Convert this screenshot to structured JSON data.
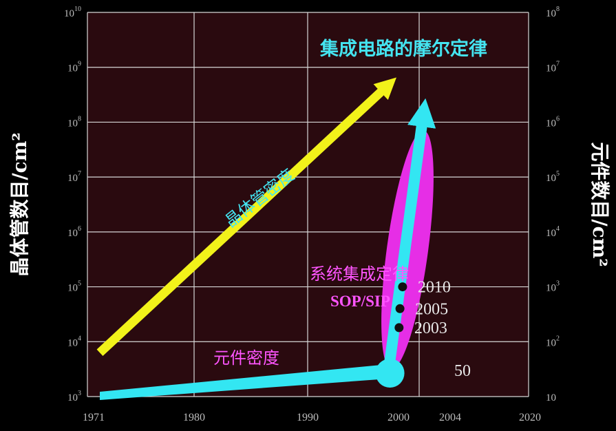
{
  "chart_data": {
    "type": "line",
    "title": "",
    "colors": {
      "background": "#000000",
      "plot_area": "#2a0a0f",
      "grid": "#d8d8d8",
      "transistor_arrow": "#f2f21a",
      "component_arrow": "#33e6f2",
      "ellipse": "#e62ee6",
      "moore_label": "#44e4f0",
      "sop_label": "#ff55ff",
      "text": "#ffffff"
    },
    "y_left": {
      "label": "晶体管数目/cm²",
      "scale": "log",
      "range": [
        1000,
        10000000000
      ],
      "ticks": [
        {
          "base": "10",
          "exp": "3"
        },
        {
          "base": "10",
          "exp": "4"
        },
        {
          "base": "10",
          "exp": "5"
        },
        {
          "base": "10",
          "exp": "6"
        },
        {
          "base": "10",
          "exp": "7"
        },
        {
          "base": "10",
          "exp": "8"
        },
        {
          "base": "10",
          "exp": "9"
        },
        {
          "base": "10",
          "exp": "10"
        }
      ]
    },
    "y_right": {
      "label": "元件数目/cm²",
      "scale": "log",
      "range": [
        10,
        100000000
      ],
      "ticks": [
        {
          "base": "10",
          "exp": ""
        },
        {
          "base": "10",
          "exp": "2"
        },
        {
          "base": "10",
          "exp": "3"
        },
        {
          "base": "10",
          "exp": "4"
        },
        {
          "base": "10",
          "exp": "5"
        },
        {
          "base": "10",
          "exp": "6"
        },
        {
          "base": "10",
          "exp": "7"
        },
        {
          "base": "10",
          "exp": "8"
        }
      ]
    },
    "x": {
      "range": [
        1971,
        2020
      ],
      "ticks": [
        "1971",
        "1980",
        "1990",
        "2000",
        "2004",
        "2020"
      ],
      "tick_values": [
        1971,
        1980,
        1990,
        2000,
        2004,
        2020
      ]
    },
    "grid": true,
    "series": [
      {
        "name": "晶体管密度",
        "axis": "left",
        "points": [
          [
            1971,
            6300
          ],
          [
            2004,
            480000000
          ]
        ]
      },
      {
        "name": "元件密度",
        "axis": "right",
        "points": [
          [
            1971,
            10
          ],
          [
            2002,
            30
          ],
          [
            2004,
            30
          ]
        ]
      },
      {
        "axis": "right",
        "points": [
          [
            2004,
            30
          ],
          [
            2008,
            1500000
          ]
        ]
      }
    ],
    "annotations": {
      "moore_law": "集成电路的摩尔定律",
      "transistor_density": "晶体管密度",
      "sop_law": "系统集成定律",
      "sop_sip": "SOP/SIP",
      "component_density": "元件密度",
      "start_value": "50",
      "year_points": [
        {
          "label": "2010",
          "year": 2005.6,
          "value": 1000
        },
        {
          "label": "2005",
          "year": 2005.3,
          "value": 400
        },
        {
          "label": "2003",
          "year": 2005.2,
          "value": 180
        }
      ]
    }
  }
}
